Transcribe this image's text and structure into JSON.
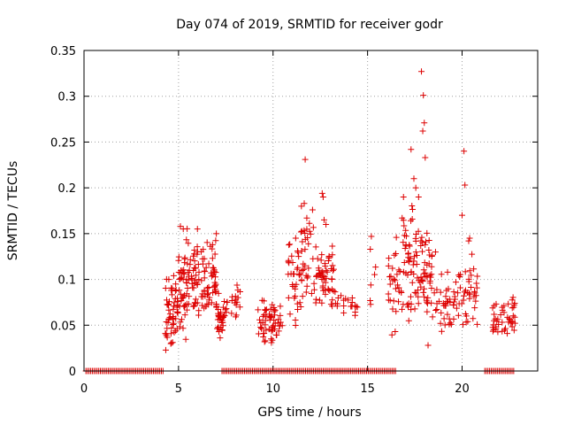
{
  "chart_data": {
    "type": "scatter",
    "title": "Day 074 of 2019, SRMTID for receiver godr",
    "xlabel": "GPS time / hours",
    "ylabel": "SRMTID / TECUs",
    "xlim": [
      0,
      24
    ],
    "ylim": [
      0,
      0.35
    ],
    "xticks": [
      "0",
      "5",
      "10",
      "15",
      "20"
    ],
    "yticks": [
      "0",
      "0.05",
      "0.1",
      "0.15",
      "0.2",
      "0.25",
      "0.3",
      "0.35"
    ],
    "grid": true,
    "marker": "+",
    "marker_color": "#dd0000",
    "series": [
      {
        "name": "SRMTID",
        "zero_ranges": [
          [
            0.1,
            4.2
          ],
          [
            7.3,
            16.5
          ],
          [
            21.2,
            22.8
          ]
        ],
        "clusters": [
          {
            "x": [
              4.3,
              5.0
            ],
            "y": [
              0.02,
              0.11
            ],
            "n": 55
          },
          {
            "x": [
              5.0,
              5.6
            ],
            "y": [
              0.03,
              0.16
            ],
            "n": 50
          },
          {
            "x": [
              5.6,
              6.3
            ],
            "y": [
              0.05,
              0.15
            ],
            "n": 45
          },
          {
            "x": [
              6.3,
              7.0
            ],
            "y": [
              0.05,
              0.15
            ],
            "n": 50
          },
          {
            "x": [
              7.0,
              7.6
            ],
            "y": [
              0.03,
              0.09
            ],
            "n": 40
          },
          {
            "x": [
              7.8,
              8.3
            ],
            "y": [
              0.05,
              0.1
            ],
            "n": 15
          },
          {
            "x": [
              9.2,
              10.0
            ],
            "y": [
              0.02,
              0.09
            ],
            "n": 40
          },
          {
            "x": [
              10.0,
              10.5
            ],
            "y": [
              0.03,
              0.08
            ],
            "n": 20
          },
          {
            "x": [
              10.8,
              11.6
            ],
            "y": [
              0.04,
              0.16
            ],
            "n": 45
          },
          {
            "x": [
              11.6,
              12.2
            ],
            "y": [
              0.07,
              0.18
            ],
            "n": 25
          },
          {
            "x": [
              12.2,
              13.3
            ],
            "y": [
              0.06,
              0.14
            ],
            "n": 55
          },
          {
            "x": [
              13.3,
              14.5
            ],
            "y": [
              0.06,
              0.09
            ],
            "n": 20
          },
          {
            "x": [
              15.0,
              15.5
            ],
            "y": [
              0.06,
              0.15
            ],
            "n": 6
          },
          {
            "x": [
              16.1,
              16.8
            ],
            "y": [
              0.03,
              0.15
            ],
            "n": 30
          },
          {
            "x": [
              16.8,
              17.6
            ],
            "y": [
              0.05,
              0.19
            ],
            "n": 50
          },
          {
            "x": [
              17.6,
              18.6
            ],
            "y": [
              0.04,
              0.16
            ],
            "n": 55
          },
          {
            "x": [
              18.6,
              19.4
            ],
            "y": [
              0.04,
              0.11
            ],
            "n": 30
          },
          {
            "x": [
              19.4,
              20.2
            ],
            "y": [
              0.04,
              0.12
            ],
            "n": 25
          },
          {
            "x": [
              20.2,
              20.9
            ],
            "y": [
              0.04,
              0.14
            ],
            "n": 25
          },
          {
            "x": [
              21.6,
              22.5
            ],
            "y": [
              0.03,
              0.08
            ],
            "n": 30
          },
          {
            "x": [
              22.5,
              22.8
            ],
            "y": [
              0.03,
              0.09
            ],
            "n": 15
          }
        ],
        "peaks": [
          {
            "x": 5.1,
            "y": 0.158
          },
          {
            "x": 5.25,
            "y": 0.155
          },
          {
            "x": 6.0,
            "y": 0.155
          },
          {
            "x": 7.0,
            "y": 0.15
          },
          {
            "x": 11.5,
            "y": 0.18
          },
          {
            "x": 11.65,
            "y": 0.183
          },
          {
            "x": 11.7,
            "y": 0.231
          },
          {
            "x": 12.6,
            "y": 0.194
          },
          {
            "x": 12.65,
            "y": 0.19
          },
          {
            "x": 12.7,
            "y": 0.165
          },
          {
            "x": 12.8,
            "y": 0.16
          },
          {
            "x": 15.2,
            "y": 0.147
          },
          {
            "x": 16.9,
            "y": 0.19
          },
          {
            "x": 17.3,
            "y": 0.242
          },
          {
            "x": 17.45,
            "y": 0.21
          },
          {
            "x": 17.55,
            "y": 0.2
          },
          {
            "x": 17.7,
            "y": 0.19
          },
          {
            "x": 17.85,
            "y": 0.327
          },
          {
            "x": 17.95,
            "y": 0.301
          },
          {
            "x": 18.0,
            "y": 0.271
          },
          {
            "x": 17.92,
            "y": 0.262
          },
          {
            "x": 18.05,
            "y": 0.233
          },
          {
            "x": 18.2,
            "y": 0.028
          },
          {
            "x": 20.1,
            "y": 0.24
          },
          {
            "x": 20.15,
            "y": 0.203
          },
          {
            "x": 20.0,
            "y": 0.17
          },
          {
            "x": 20.4,
            "y": 0.145
          },
          {
            "x": 20.35,
            "y": 0.142
          }
        ]
      }
    ]
  }
}
